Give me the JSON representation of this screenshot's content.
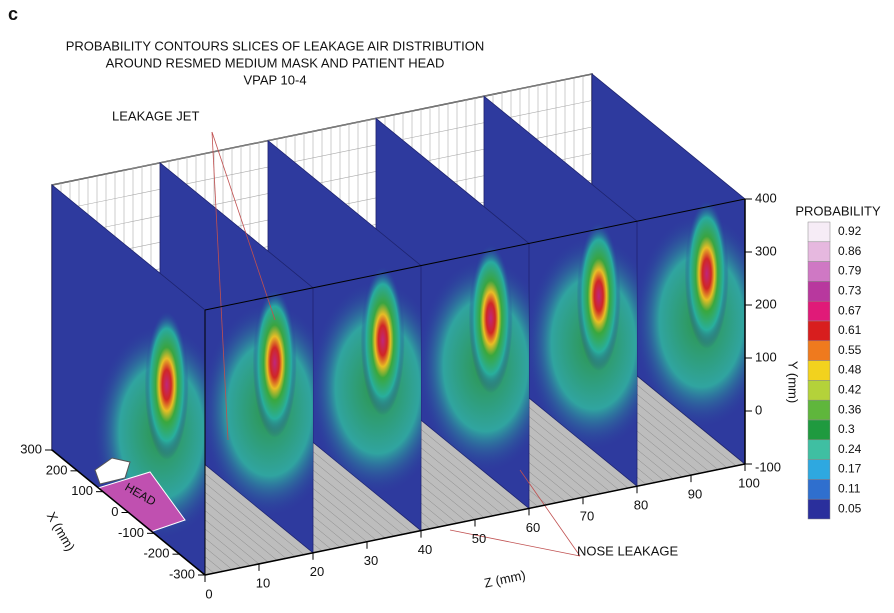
{
  "chart_data": {
    "type": "contour-slices",
    "panel_label": "c",
    "title": [
      "PROBABILITY CONTOURS SLICES OF LEAKAGE AIR DISTRIBUTION",
      "AROUND RESMED MEDIUM MASK AND PATIENT HEAD",
      "VPAP 10-4"
    ],
    "annotations": [
      "LEAKAGE JET",
      "NOSE LEAKAGE",
      "HEAD"
    ],
    "xlabel": "X (mm)",
    "ylabel": "Y (mm)",
    "zlabel": "Z (mm)",
    "xlim": [
      -300,
      300
    ],
    "xticks": [
      -300,
      -200,
      -100,
      0,
      100,
      200,
      300
    ],
    "ylim": [
      -100,
      400
    ],
    "yticks": [
      -100,
      0,
      100,
      200,
      300,
      400
    ],
    "zlim": [
      0,
      100
    ],
    "zticks": [
      0,
      10,
      20,
      30,
      40,
      50,
      60,
      70,
      80,
      90,
      100
    ],
    "colorbar": {
      "label": "PROBABILITY",
      "levels": [
        0.92,
        0.86,
        0.79,
        0.73,
        0.67,
        0.61,
        0.55,
        0.48,
        0.42,
        0.36,
        0.3,
        0.24,
        0.17,
        0.11,
        0.05
      ],
      "colors": [
        "#f6ecf6",
        "#e6b8df",
        "#cf78c4",
        "#b8389e",
        "#e01a78",
        "#d81e1e",
        "#ef7a1e",
        "#f2d21e",
        "#b4d23a",
        "#5fb63c",
        "#1f9a3f",
        "#3fbfa2",
        "#2ea8e0",
        "#2f6fce",
        "#2a2f9c"
      ]
    }
  }
}
